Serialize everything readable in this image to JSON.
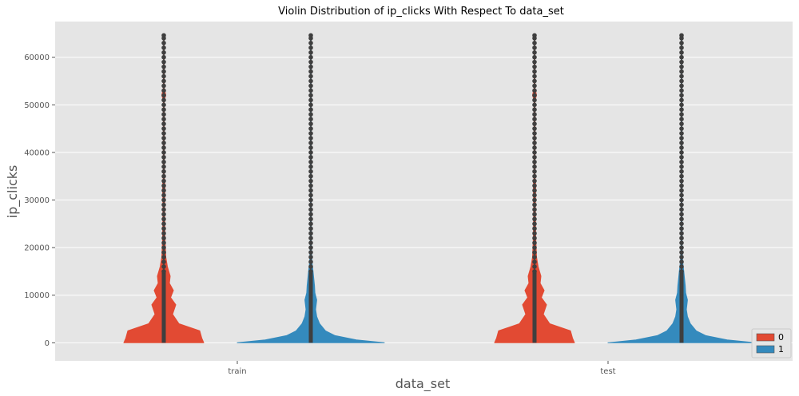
{
  "chart_data": {
    "type": "violin",
    "title": "Violin Distribution of ip_clicks With Respect To data_set",
    "xlabel": "data_set",
    "ylabel": "ip_clicks",
    "categories": [
      "train",
      "test"
    ],
    "ylim": [
      -3800,
      67500
    ],
    "yticks": [
      0,
      10000,
      20000,
      30000,
      40000,
      50000,
      60000
    ],
    "ytick_labels": [
      "0",
      "10000",
      "20000",
      "30000",
      "40000",
      "50000",
      "60000"
    ],
    "grid": true,
    "legend": {
      "placement": "bottom-right",
      "entries": [
        "0",
        "1"
      ]
    },
    "series": [
      {
        "name": "0",
        "color": "#E24A33",
        "max": 64600,
        "density_profile": [
          [
            0,
            1.0
          ],
          [
            1000,
            0.95
          ],
          [
            2500,
            0.9
          ],
          [
            4000,
            0.38
          ],
          [
            6000,
            0.22
          ],
          [
            8000,
            0.3
          ],
          [
            9500,
            0.17
          ],
          [
            11000,
            0.24
          ],
          [
            12500,
            0.14
          ],
          [
            14000,
            0.16
          ],
          [
            16000,
            0.09
          ],
          [
            18000,
            0.05
          ],
          [
            22000,
            0.03
          ],
          [
            28000,
            0.02
          ],
          [
            33000,
            0.03
          ],
          [
            35000,
            0.012
          ],
          [
            51000,
            0.012
          ],
          [
            52000,
            0.05
          ],
          [
            53500,
            0.012
          ],
          [
            64600,
            0.004
          ]
        ]
      },
      {
        "name": "1",
        "color": "#348ABD",
        "max": 64600,
        "density_profile": [
          [
            0,
            1.0
          ],
          [
            600,
            0.62
          ],
          [
            1500,
            0.33
          ],
          [
            2500,
            0.2
          ],
          [
            4000,
            0.12
          ],
          [
            5500,
            0.08
          ],
          [
            7000,
            0.065
          ],
          [
            9000,
            0.08
          ],
          [
            10500,
            0.055
          ],
          [
            12000,
            0.05
          ],
          [
            13500,
            0.04
          ],
          [
            15000,
            0.03
          ],
          [
            17000,
            0.015
          ],
          [
            20000,
            0.008
          ],
          [
            30000,
            0.005
          ],
          [
            64600,
            0.003
          ]
        ]
      }
    ],
    "outlier_values": [
      15000,
      16000,
      17000,
      18000,
      19000,
      20000,
      21000,
      22000,
      23000,
      24000,
      25000,
      26000,
      27000,
      28000,
      29000,
      30000,
      31000,
      32000,
      33000,
      34000,
      35000,
      36000,
      37000,
      38000,
      39000,
      40000,
      41000,
      42000,
      43000,
      44000,
      45000,
      46000,
      47000,
      48000,
      49000,
      50000,
      51000,
      52000,
      53000,
      54000,
      55000,
      56000,
      57000,
      58000,
      59000,
      60000,
      61000,
      62000,
      63000,
      64000,
      64600
    ]
  }
}
